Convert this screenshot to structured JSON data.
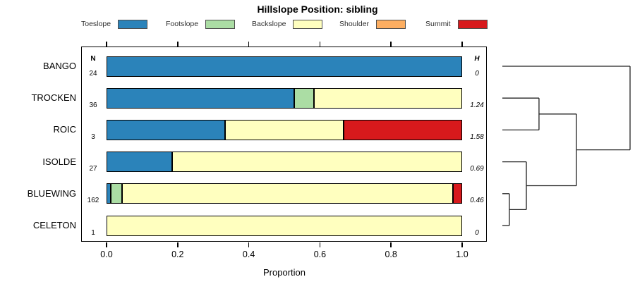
{
  "title": "Hillslope Position: sibling",
  "chart_data": {
    "type": "bar",
    "subtype": "horizontal-stacked-proportion",
    "title": "Hillslope Position: sibling",
    "xlabel": "Proportion",
    "xlim": [
      0,
      1
    ],
    "x_ticks": [
      {
        "value": 0.0,
        "label": "0.0"
      },
      {
        "value": 0.2,
        "label": "0.2"
      },
      {
        "value": 0.4,
        "label": "0.4"
      },
      {
        "value": 0.6,
        "label": "0.6"
      },
      {
        "value": 0.8,
        "label": "0.8"
      },
      {
        "value": 1.0,
        "label": "1.0"
      }
    ],
    "legend_position": "top",
    "series": [
      {
        "name": "Toeslope",
        "color": "#2B83BA"
      },
      {
        "name": "Footslope",
        "color": "#ABDDA4"
      },
      {
        "name": "Backslope",
        "color": "#FFFFBF"
      },
      {
        "name": "Shoulder",
        "color": "#FDAE61"
      },
      {
        "name": "Summit",
        "color": "#D7191C"
      }
    ],
    "columns": {
      "n_header": "N",
      "h_header": "H"
    },
    "rows": [
      {
        "label": "BANGO",
        "n": "24",
        "h": "0",
        "parts": [
          {
            "category": "Toeslope",
            "p": 1.0
          }
        ]
      },
      {
        "label": "TROCKEN",
        "n": "36",
        "h": "1.24",
        "parts": [
          {
            "category": "Toeslope",
            "p": 0.528
          },
          {
            "category": "Footslope",
            "p": 0.056
          },
          {
            "category": "Backslope",
            "p": 0.417
          }
        ]
      },
      {
        "label": "ROIC",
        "n": "3",
        "h": "1.58",
        "parts": [
          {
            "category": "Toeslope",
            "p": 0.333
          },
          {
            "category": "Backslope",
            "p": 0.333
          },
          {
            "category": "Summit",
            "p": 0.334
          }
        ]
      },
      {
        "label": "ISOLDE",
        "n": "27",
        "h": "0.69",
        "parts": [
          {
            "category": "Toeslope",
            "p": 0.185
          },
          {
            "category": "Backslope",
            "p": 0.815
          }
        ]
      },
      {
        "label": "BLUEWING",
        "n": "162",
        "h": "0.46",
        "parts": [
          {
            "category": "Toeslope",
            "p": 0.012
          },
          {
            "category": "Footslope",
            "p": 0.031
          },
          {
            "category": "Backslope",
            "p": 0.932
          },
          {
            "category": "Summit",
            "p": 0.025
          }
        ]
      },
      {
        "label": "CELETON",
        "n": "1",
        "h": "0",
        "parts": [
          {
            "category": "Backslope",
            "p": 1.0
          }
        ]
      }
    ],
    "dendrogram": {
      "position": "right",
      "leaves": [
        "BANGO",
        "TROCKEN",
        "ROIC",
        "ISOLDE",
        "BLUEWING",
        "CELETON"
      ],
      "merges": [
        {
          "join": [
            "BLUEWING",
            "CELETON"
          ],
          "height": 0.055
        },
        {
          "join": [
            "ISOLDE",
            "@0"
          ],
          "height": 0.188
        },
        {
          "join": [
            "TROCKEN",
            "ROIC"
          ],
          "height": 0.287
        },
        {
          "join": [
            "@2",
            "@1"
          ],
          "height": 0.58
        },
        {
          "join": [
            "BANGO",
            "@3"
          ],
          "height": 1.0
        }
      ],
      "line_color": "#222222"
    }
  }
}
